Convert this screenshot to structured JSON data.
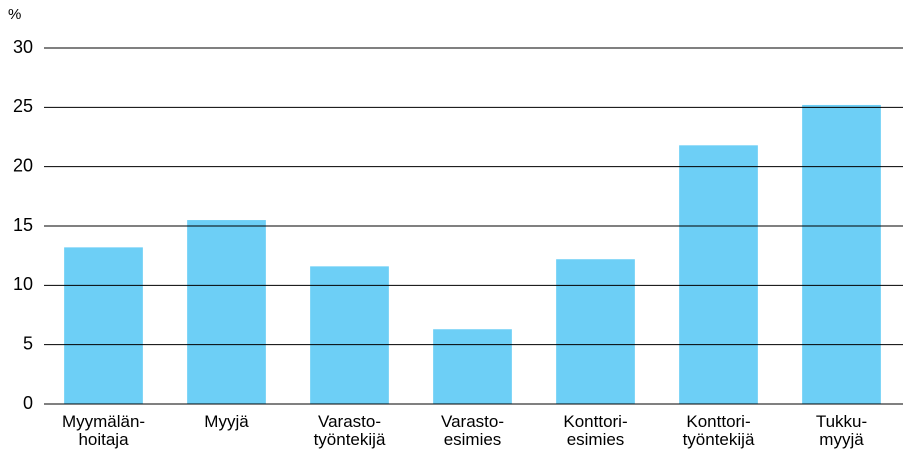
{
  "chart_data": {
    "type": "bar",
    "y_label": "%",
    "categories": [
      "Myymälän-\nhoitaja",
      "Myyjä",
      "Varasto-\ntyöntekijä",
      "Varasto-\nesimies",
      "Konttori-\nesimies",
      "Konttori-\ntyöntekijä",
      "Tukku-\nmyyjä"
    ],
    "values": [
      13.2,
      15.5,
      11.6,
      6.3,
      12.2,
      21.8,
      25.2
    ],
    "color": "#6dcff6",
    "ylim": [
      0,
      30
    ],
    "yticks": [
      0,
      5,
      10,
      15,
      20,
      25,
      30
    ],
    "grid": true
  }
}
